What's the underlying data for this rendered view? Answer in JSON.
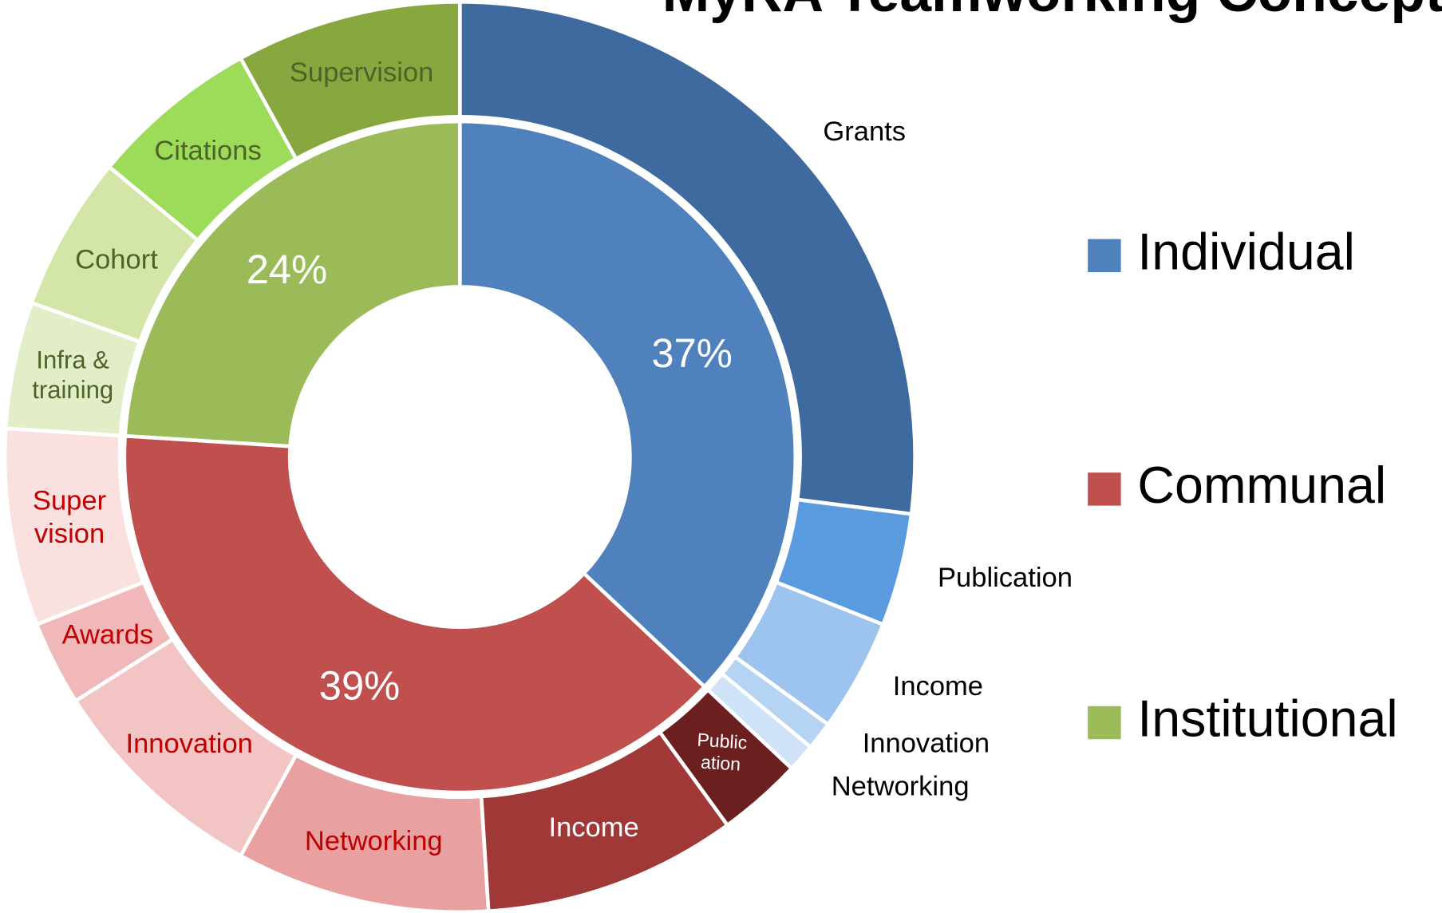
{
  "chart_data": {
    "type": "sunburst",
    "title": "MyRA Teamworking Concept",
    "categories": [
      "Individual",
      "Communal",
      "Institutional"
    ],
    "values": [
      37,
      39,
      24
    ],
    "value_labels": [
      "37%",
      "39%",
      "24%"
    ],
    "colors": [
      "#4f81bd",
      "#c0504d",
      "#9bbb59"
    ],
    "legend": "right",
    "children": [
      {
        "labels": [
          [
            "Grants"
          ],
          [
            "Publication"
          ],
          [
            "Income"
          ],
          [
            "Innovation"
          ],
          [
            "Networking"
          ]
        ],
        "values": [
          27,
          4,
          4,
          1,
          1
        ],
        "colors": [
          "#3e6aa0",
          "#5a9be0",
          "#9dc3ef",
          "#b5d3f3",
          "#cfe2f7"
        ]
      },
      {
        "labels": [
          [
            "Public",
            "ation"
          ],
          [
            "Income"
          ],
          [
            "Networking"
          ],
          [
            "Innovation"
          ],
          [
            "Awards"
          ],
          [
            "Super",
            "vision"
          ]
        ],
        "values": [
          3,
          9,
          9,
          8,
          3,
          7
        ],
        "colors": [
          "#6b1f1f",
          "#a03838",
          "#e8a0a0",
          "#f2c4c4",
          "#f0b8b8",
          "#fbe0e0"
        ]
      },
      {
        "labels": [
          [
            "Infra &",
            "training"
          ],
          [
            "Cohort"
          ],
          [
            "Citations"
          ],
          [
            "Supervision"
          ]
        ],
        "values": [
          4.5,
          5.5,
          6,
          8
        ],
        "colors": [
          "#e2eec8",
          "#d3e6a8",
          "#9cdc5a",
          "#86a83e"
        ]
      }
    ]
  }
}
